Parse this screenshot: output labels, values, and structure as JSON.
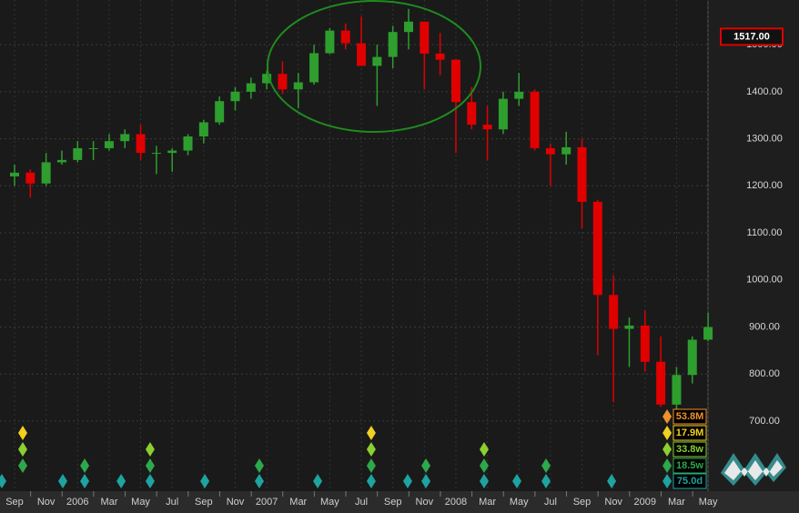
{
  "chart_data": {
    "type": "candlestick",
    "categories": [
      "Sep",
      null,
      "Nov",
      null,
      "2006",
      null,
      "Mar",
      null,
      "May",
      null,
      "Jul",
      null,
      "Sep",
      null,
      "Nov",
      null,
      "2007",
      null,
      "Mar",
      null,
      "May",
      null,
      "Jul",
      null,
      "Sep",
      null,
      "Nov",
      null,
      "2008",
      null,
      "Mar",
      null,
      "May",
      null,
      "Jul",
      null,
      "Sep",
      null,
      "Nov",
      null,
      "2009",
      null,
      "Mar",
      null,
      "May"
    ],
    "open": [
      1220,
      1228,
      1205,
      1250,
      1255,
      1280,
      1280,
      1295,
      1310,
      1270,
      1270,
      1275,
      1305,
      1335,
      1380,
      1400,
      1418,
      1438,
      1405,
      1420,
      1482,
      1530,
      1503,
      1455,
      1474,
      1527,
      1549,
      1481,
      1468,
      1378,
      1330,
      1320,
      1385,
      1400,
      1280,
      1267,
      1282,
      1166,
      968,
      896,
      903,
      826,
      735,
      798,
      873
    ],
    "high": [
      1245,
      1235,
      1270,
      1275,
      1295,
      1295,
      1310,
      1320,
      1330,
      1285,
      1280,
      1310,
      1340,
      1390,
      1410,
      1430,
      1445,
      1465,
      1440,
      1500,
      1535,
      1545,
      1560,
      1500,
      1540,
      1576,
      1545,
      1525,
      1470,
      1410,
      1370,
      1400,
      1440,
      1405,
      1290,
      1315,
      1300,
      1170,
      1010,
      920,
      935,
      880,
      815,
      880,
      930
    ],
    "low": [
      1200,
      1175,
      1200,
      1245,
      1250,
      1255,
      1275,
      1280,
      1255,
      1225,
      1230,
      1265,
      1290,
      1330,
      1360,
      1385,
      1405,
      1395,
      1365,
      1415,
      1480,
      1490,
      1455,
      1370,
      1450,
      1490,
      1405,
      1435,
      1270,
      1320,
      1255,
      1310,
      1370,
      1275,
      1200,
      1245,
      1110,
      840,
      740,
      815,
      805,
      730,
      715,
      780,
      870
    ],
    "close": [
      1228,
      1205,
      1250,
      1255,
      1280,
      1280,
      1295,
      1310,
      1270,
      1270,
      1275,
      1305,
      1335,
      1380,
      1400,
      1418,
      1438,
      1405,
      1420,
      1482,
      1530,
      1503,
      1455,
      1474,
      1527,
      1549,
      1481,
      1468,
      1378,
      1330,
      1320,
      1385,
      1400,
      1280,
      1267,
      1282,
      1166,
      968,
      896,
      903,
      826,
      735,
      798,
      873,
      900
    ],
    "up_color": "#2e9e2e",
    "down_color": "#e00000",
    "ylim": [
      551,
      1595
    ],
    "yticks": [
      {
        "value": 700,
        "label": "700.00"
      },
      {
        "value": 800,
        "label": "800.00"
      },
      {
        "value": 900,
        "label": "900.00"
      },
      {
        "value": 1000,
        "label": "1000.00"
      },
      {
        "value": 1100,
        "label": "1100.00"
      },
      {
        "value": 1200,
        "label": "1200.00"
      },
      {
        "value": 1300,
        "label": "1300.00"
      },
      {
        "value": 1400,
        "label": "1400.00"
      },
      {
        "value": 1500,
        "label": "1500.00"
      }
    ],
    "grid": true,
    "price_marker": {
      "value": 1517,
      "label": "1517.00",
      "color": "#e00000"
    },
    "cycles": [
      {
        "name": "53.8M",
        "color": "#f0902a",
        "signals": [
          41.4
        ]
      },
      {
        "name": "17.9M",
        "color": "#f0d020",
        "signals": [
          0.52,
          22.63,
          41.4
        ]
      },
      {
        "name": "33.8w",
        "color": "#8ccf30",
        "signals": [
          0.52,
          8.6,
          22.63,
          29.79,
          41.4
        ]
      },
      {
        "name": "18.5w",
        "color": "#2ea84a",
        "signals": [
          0.52,
          4.45,
          8.6,
          15.53,
          22.63,
          26.1,
          29.79,
          33.72,
          41.4
        ]
      },
      {
        "name": "75.0d",
        "color": "#1fa3a0",
        "signals": [
          -0.81,
          3.06,
          4.45,
          6.76,
          8.6,
          12.07,
          15.53,
          19.23,
          22.63,
          24.94,
          26.1,
          29.79,
          31.87,
          33.72,
          37.88,
          41.4
        ]
      }
    ]
  }
}
